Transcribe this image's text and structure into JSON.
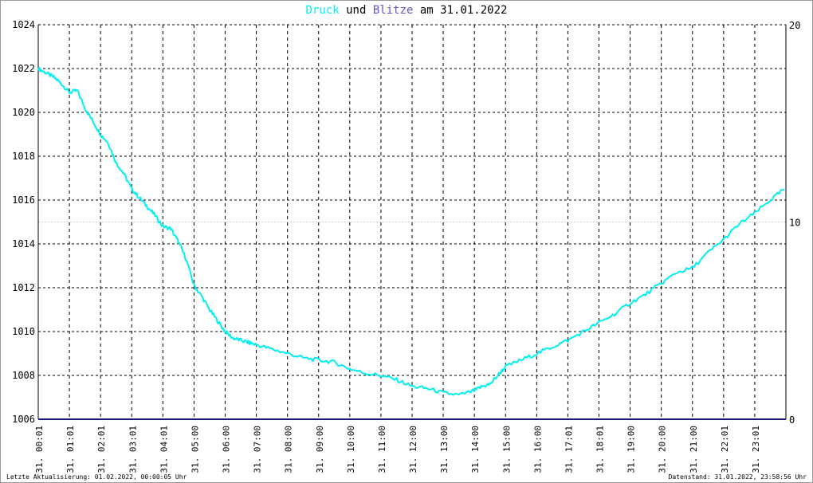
{
  "title": {
    "series1": "Druck",
    "conj": "und",
    "series2": "Blitze",
    "suffix": "am 31.01.2022"
  },
  "colors": {
    "druck": "#00f0f0",
    "blitze": "#6a52c8",
    "baseline": "#1a1a7a",
    "grid": "#000000",
    "refline": "#c8c8c8"
  },
  "footer": {
    "left": "Letzte Aktualisierung: 01.02.2022, 00:00:05 Uhr",
    "right": "Datenstand: 31.01.2022, 23:58:56 Uhr"
  },
  "chart_data": {
    "type": "line",
    "title": "Druck und Blitze am 31.01.2022",
    "x_labels": [
      "31. 00:01",
      "31. 01:01",
      "31. 02:01",
      "31. 03:01",
      "31. 04:01",
      "31. 05:00",
      "31. 06:00",
      "31. 07:00",
      "31. 08:00",
      "31. 09:00",
      "31. 10:00",
      "31. 11:00",
      "31. 12:00",
      "31. 13:00",
      "31. 14:00",
      "31. 15:00",
      "31. 16:00",
      "31. 17:01",
      "31. 18:01",
      "31. 19:00",
      "31. 20:00",
      "31. 21:00",
      "31. 22:01",
      "31. 23:01"
    ],
    "y_left": {
      "min": 1006,
      "max": 1024,
      "ticks": [
        1006,
        1008,
        1010,
        1012,
        1014,
        1016,
        1018,
        1020,
        1022,
        1024
      ]
    },
    "y_right": {
      "min": 0,
      "max": 20,
      "ticks": [
        0,
        10,
        20
      ]
    },
    "grid": true,
    "series": [
      {
        "name": "Druck",
        "axis": "left",
        "x_hours": [
          0,
          0.25,
          0.5,
          0.75,
          1,
          1.25,
          1.5,
          1.75,
          2,
          2.25,
          2.5,
          2.75,
          3,
          3.25,
          3.5,
          3.75,
          4,
          4.25,
          4.5,
          4.75,
          5,
          5.25,
          5.5,
          5.75,
          6,
          6.25,
          6.5,
          6.75,
          7,
          7.5,
          8,
          8.5,
          9,
          9.5,
          10,
          10.5,
          11,
          11.5,
          12,
          12.5,
          13,
          13.5,
          14,
          14.25,
          14.5,
          14.75,
          15,
          15.5,
          16,
          16.5,
          17,
          17.5,
          18,
          18.5,
          19,
          19.5,
          20,
          20.5,
          21,
          21.5,
          22,
          22.5,
          23,
          23.5,
          23.95
        ],
        "values": [
          1022.0,
          1021.8,
          1021.6,
          1021.3,
          1020.9,
          1021.0,
          1020.2,
          1019.6,
          1019.0,
          1018.6,
          1017.7,
          1017.2,
          1016.5,
          1016.1,
          1015.7,
          1015.3,
          1014.8,
          1014.7,
          1014.1,
          1013.3,
          1012.1,
          1011.6,
          1011.0,
          1010.5,
          1010.0,
          1009.7,
          1009.6,
          1009.5,
          1009.4,
          1009.2,
          1009.0,
          1008.8,
          1008.7,
          1008.6,
          1008.3,
          1008.1,
          1008.0,
          1007.8,
          1007.5,
          1007.4,
          1007.2,
          1007.1,
          1007.3,
          1007.5,
          1007.6,
          1008.0,
          1008.4,
          1008.7,
          1009.0,
          1009.3,
          1009.6,
          1010.0,
          1010.4,
          1010.8,
          1011.3,
          1011.7,
          1012.2,
          1012.7,
          1012.9,
          1013.6,
          1014.2,
          1014.9,
          1015.4,
          1016.0,
          1016.5
        ]
      },
      {
        "name": "Blitze",
        "axis": "right",
        "x_hours": [
          0,
          24
        ],
        "values": [
          0,
          0
        ]
      }
    ]
  }
}
